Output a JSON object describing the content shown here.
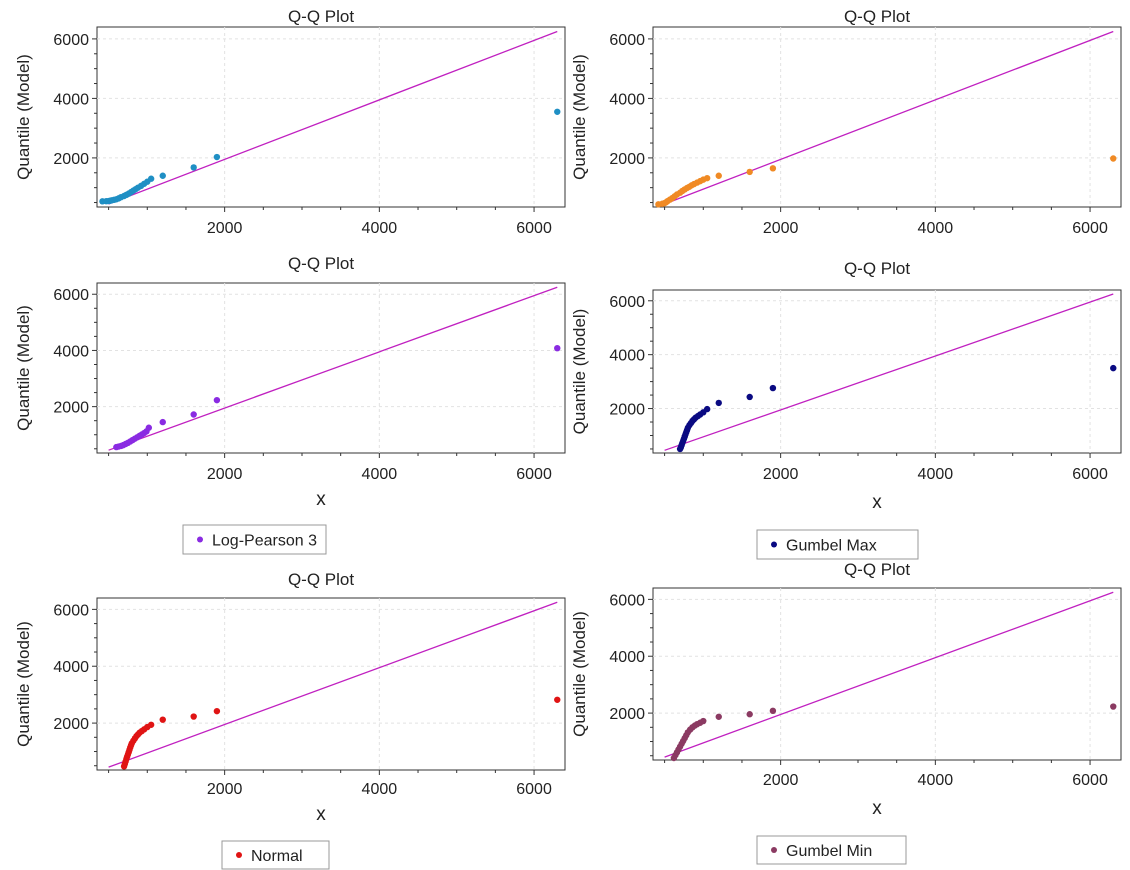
{
  "charts": [
    {
      "title": "Q-Q Plot",
      "ylabel": "Quantile (Model)",
      "xlabel": "",
      "legend": "",
      "color": "#1f8fc4",
      "x": [
        420,
        470,
        500,
        520,
        540,
        570,
        600,
        630,
        660,
        700,
        730,
        760,
        790,
        820,
        850,
        880,
        920,
        960,
        1000,
        1050,
        1200,
        1600,
        1900,
        6300
      ],
      "y": [
        540,
        545,
        550,
        560,
        575,
        590,
        610,
        640,
        680,
        720,
        760,
        800,
        850,
        900,
        950,
        1000,
        1060,
        1130,
        1200,
        1300,
        1400,
        1680,
        2030,
        3550
      ]
    },
    {
      "title": "Q-Q Plot",
      "ylabel": "Quantile (Model)",
      "xlabel": "",
      "legend": "",
      "color": "#f08a24",
      "x": [
        420,
        470,
        500,
        520,
        540,
        570,
        600,
        630,
        660,
        700,
        730,
        760,
        790,
        820,
        850,
        880,
        920,
        960,
        1000,
        1050,
        1200,
        1600,
        1900,
        6300
      ],
      "y": [
        440,
        460,
        480,
        510,
        550,
        600,
        650,
        710,
        770,
        830,
        890,
        940,
        990,
        1030,
        1080,
        1120,
        1170,
        1220,
        1270,
        1320,
        1400,
        1530,
        1650,
        1980
      ]
    },
    {
      "title": "Q-Q Plot",
      "ylabel": "Quantile (Model)",
      "xlabel": "x",
      "legend": "Log-Pearson 3",
      "color": "#8a2be2",
      "x": [
        600,
        630,
        660,
        690,
        720,
        750,
        780,
        810,
        840,
        870,
        900,
        930,
        960,
        990,
        1020,
        1200,
        1600,
        1900,
        6300
      ],
      "y": [
        560,
        580,
        600,
        630,
        670,
        710,
        760,
        810,
        860,
        910,
        960,
        1010,
        1060,
        1120,
        1250,
        1450,
        1720,
        2230,
        4080
      ]
    },
    {
      "title": "Q-Q Plot",
      "ylabel": "Quantile (Model)",
      "xlabel": "x",
      "legend": "Gumbel Max",
      "color": "#0a0a82",
      "x": [
        700,
        710,
        720,
        730,
        740,
        750,
        760,
        770,
        780,
        790,
        800,
        820,
        840,
        860,
        880,
        900,
        930,
        960,
        1000,
        1050,
        1200,
        1600,
        1900,
        6300
      ],
      "y": [
        500,
        560,
        640,
        720,
        800,
        880,
        960,
        1040,
        1120,
        1200,
        1280,
        1380,
        1460,
        1540,
        1600,
        1660,
        1720,
        1780,
        1860,
        1980,
        2210,
        2430,
        2760,
        3500
      ]
    },
    {
      "title": "Q-Q Plot",
      "ylabel": "Quantile (Model)",
      "xlabel": "x",
      "legend": "Normal",
      "color": "#e01414",
      "x": [
        700,
        710,
        720,
        730,
        740,
        750,
        760,
        770,
        780,
        790,
        800,
        820,
        840,
        860,
        880,
        900,
        930,
        960,
        1000,
        1050,
        1200,
        1600,
        1900,
        6300
      ],
      "y": [
        480,
        560,
        650,
        740,
        820,
        900,
        980,
        1060,
        1140,
        1220,
        1290,
        1380,
        1460,
        1540,
        1600,
        1660,
        1720,
        1780,
        1860,
        1940,
        2120,
        2230,
        2420,
        2820
      ]
    },
    {
      "title": "Q-Q Plot",
      "ylabel": "Quantile (Model)",
      "xlabel": "x",
      "legend": "Gumbel Min",
      "color": "#8b3a62",
      "x": [
        620,
        640,
        660,
        680,
        700,
        720,
        740,
        760,
        780,
        800,
        830,
        860,
        890,
        920,
        960,
        1000,
        1200,
        1600,
        1900,
        6300
      ],
      "y": [
        420,
        520,
        620,
        720,
        820,
        920,
        1020,
        1120,
        1220,
        1320,
        1420,
        1500,
        1560,
        1610,
        1660,
        1720,
        1870,
        1960,
        2080,
        2230
      ]
    }
  ],
  "axes": {
    "xticks": [
      "2000",
      "4000",
      "6000"
    ],
    "yticks": [
      "2000",
      "4000",
      "6000"
    ],
    "xlim": [
      350,
      6400
    ],
    "ylim": [
      350,
      6400
    ],
    "reference_line": [
      [
        500,
        450
      ],
      [
        6300,
        6250
      ]
    ],
    "reference_line_color": "#c020c0"
  }
}
